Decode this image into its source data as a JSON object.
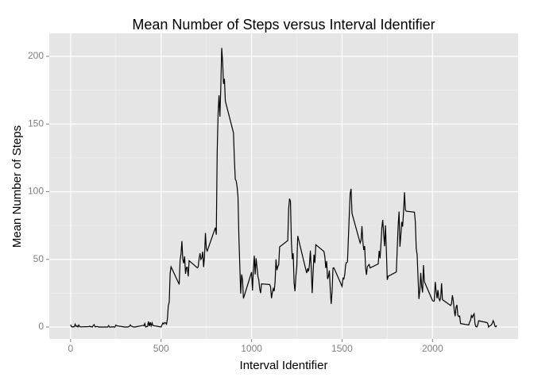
{
  "chart_data": {
    "type": "line",
    "title": "Mean Number of Steps versus Interval Identifier",
    "x_label": "Interval Identifier",
    "y_label": "Mean Number of Steps",
    "x": [
      0,
      5,
      10,
      15,
      20,
      25,
      30,
      35,
      40,
      45,
      50,
      55,
      100,
      105,
      110,
      115,
      120,
      125,
      130,
      135,
      140,
      145,
      150,
      155,
      200,
      205,
      210,
      215,
      220,
      225,
      230,
      235,
      240,
      245,
      250,
      255,
      300,
      305,
      310,
      315,
      320,
      325,
      330,
      335,
      340,
      345,
      350,
      355,
      400,
      405,
      410,
      415,
      420,
      425,
      430,
      435,
      440,
      445,
      450,
      455,
      500,
      505,
      510,
      515,
      520,
      525,
      530,
      535,
      540,
      545,
      550,
      555,
      600,
      605,
      610,
      615,
      620,
      625,
      630,
      635,
      640,
      645,
      650,
      655,
      700,
      705,
      710,
      715,
      720,
      725,
      730,
      735,
      740,
      745,
      750,
      755,
      800,
      805,
      810,
      815,
      820,
      825,
      830,
      835,
      840,
      845,
      850,
      855,
      900,
      905,
      910,
      915,
      920,
      925,
      930,
      935,
      940,
      945,
      950,
      955,
      1000,
      1005,
      1010,
      1015,
      1020,
      1025,
      1030,
      1035,
      1040,
      1045,
      1050,
      1055,
      1100,
      1105,
      1110,
      1115,
      1120,
      1125,
      1130,
      1135,
      1140,
      1145,
      1150,
      1155,
      1200,
      1205,
      1210,
      1215,
      1220,
      1225,
      1230,
      1235,
      1240,
      1245,
      1250,
      1255,
      1300,
      1305,
      1310,
      1315,
      1320,
      1325,
      1330,
      1335,
      1340,
      1345,
      1350,
      1355,
      1400,
      1405,
      1410,
      1415,
      1420,
      1425,
      1430,
      1435,
      1440,
      1445,
      1450,
      1455,
      1500,
      1505,
      1510,
      1515,
      1520,
      1525,
      1530,
      1535,
      1540,
      1545,
      1550,
      1555,
      1600,
      1605,
      1610,
      1615,
      1620,
      1625,
      1630,
      1635,
      1640,
      1645,
      1650,
      1655,
      1700,
      1705,
      1710,
      1715,
      1720,
      1725,
      1730,
      1735,
      1740,
      1745,
      1750,
      1755,
      1800,
      1805,
      1810,
      1815,
      1820,
      1825,
      1830,
      1835,
      1840,
      1845,
      1850,
      1855,
      1900,
      1905,
      1910,
      1915,
      1920,
      1925,
      1930,
      1935,
      1940,
      1945,
      1950,
      1955,
      2000,
      2005,
      2010,
      2015,
      2020,
      2025,
      2030,
      2035,
      2040,
      2045,
      2050,
      2055,
      2100,
      2105,
      2110,
      2115,
      2120,
      2125,
      2130,
      2135,
      2140,
      2145,
      2150,
      2155,
      2200,
      2205,
      2210,
      2215,
      2220,
      2225,
      2230,
      2235,
      2240,
      2245,
      2250,
      2255,
      2300,
      2305,
      2310,
      2315,
      2320,
      2325,
      2330,
      2335,
      2340,
      2345,
      2350,
      2355
    ],
    "values": [
      1.7,
      0.3,
      0.1,
      0.2,
      0.1,
      2.1,
      0.5,
      0.9,
      0,
      1.5,
      0.3,
      0.1,
      0.3,
      0.7,
      0.2,
      0.3,
      0,
      1.1,
      1.8,
      0.2,
      0.2,
      0.4,
      0.3,
      0,
      0,
      0,
      1.1,
      0,
      0,
      0.1,
      0,
      0.2,
      0,
      0,
      1.5,
      0.9,
      0,
      0,
      0,
      0,
      0.2,
      0.6,
      1.6,
      0.6,
      0.5,
      0.1,
      0,
      0,
      1.2,
      0.9,
      2.6,
      0,
      0.3,
      0.4,
      4.1,
      0.7,
      3.5,
      0.8,
      3.1,
      1.1,
      0,
      1.6,
      3.0,
      2.2,
      3.3,
      3.0,
      2.1,
      6.1,
      16.0,
      18.3,
      39.5,
      44.5,
      31.5,
      49.3,
      53.8,
      63.5,
      50.0,
      47.1,
      52.2,
      39.3,
      44.0,
      44.2,
      37.4,
      49.0,
      43.8,
      44.4,
      50.5,
      54.5,
      49.9,
      51.0,
      55.7,
      44.3,
      52.3,
      69.5,
      57.8,
      56.2,
      73.4,
      68.2,
      129.4,
      157.5,
      171.2,
      155.4,
      177.3,
      206.2,
      195.9,
      179.6,
      183.4,
      167.0,
      143.5,
      124.0,
      109.1,
      108.1,
      103.7,
      96.0,
      66.2,
      45.2,
      24.8,
      38.8,
      35.0,
      21.1,
      40.6,
      27.0,
      42.4,
      52.7,
      38.9,
      50.8,
      44.3,
      37.4,
      34.7,
      28.3,
      25.1,
      31.9,
      31.4,
      29.7,
      21.3,
      25.5,
      28.4,
      26.5,
      33.4,
      50.0,
      42.0,
      44.6,
      46.0,
      59.2,
      63.9,
      87.7,
      94.8,
      92.8,
      63.4,
      50.2,
      54.5,
      32.4,
      26.5,
      37.7,
      45.1,
      67.3,
      42.3,
      39.9,
      43.3,
      41.0,
      46.2,
      56.4,
      42.8,
      25.1,
      40.0,
      53.5,
      47.3,
      60.8,
      55.8,
      52.0,
      43.6,
      48.7,
      35.5,
      37.5,
      41.8,
      27.5,
      17.1,
      26.1,
      43.6,
      43.8,
      30.0,
      36.1,
      35.5,
      38.8,
      46.0,
      47.8,
      48.1,
      65.3,
      82.9,
      98.7,
      102.1,
      84.0,
      62.1,
      64.1,
      74.5,
      63.2,
      56.9,
      59.8,
      43.9,
      38.6,
      44.7,
      45.5,
      46.2,
      43.7,
      46.6,
      56.3,
      50.7,
      61.2,
      73.4,
      79.1,
      68.9,
      59.7,
      75.1,
      56.5,
      34.8,
      37.5,
      40.7,
      58.0,
      74.7,
      85.3,
      59.3,
      67.8,
      77.7,
      74.2,
      85.3,
      99.5,
      86.6,
      85.6,
      84.9,
      77.8,
      58.0,
      53.4,
      36.3,
      20.7,
      27.4,
      40.0,
      30.2,
      25.5,
      45.7,
      33.5,
      19.6,
      19.0,
      19.3,
      33.3,
      26.8,
      21.2,
      27.3,
      21.3,
      19.5,
      21.3,
      32.3,
      20.2,
      15.9,
      17.2,
      23.5,
      19.2,
      12.5,
      8.0,
      14.7,
      16.3,
      8.7,
      7.8,
      8.1,
      2.6,
      1.5,
      3.7,
      4.8,
      8.5,
      7.1,
      8.7,
      9.8,
      2.2,
      0.3,
      0.1,
      1.6,
      4.6,
      3.3,
      2.8,
      0,
      0.8,
      1.0,
      1.6,
      2.6,
      4.7,
      3.3,
      0.6,
      0.2,
      1.1
    ],
    "color": "#000000",
    "xlim": [
      -118,
      2473
    ],
    "xticks": [
      0,
      500,
      1000,
      1500,
      2000
    ],
    "ylim": [
      -8.8,
      217
    ],
    "yticks": [
      0,
      50,
      100,
      150,
      200
    ],
    "grid": true
  }
}
